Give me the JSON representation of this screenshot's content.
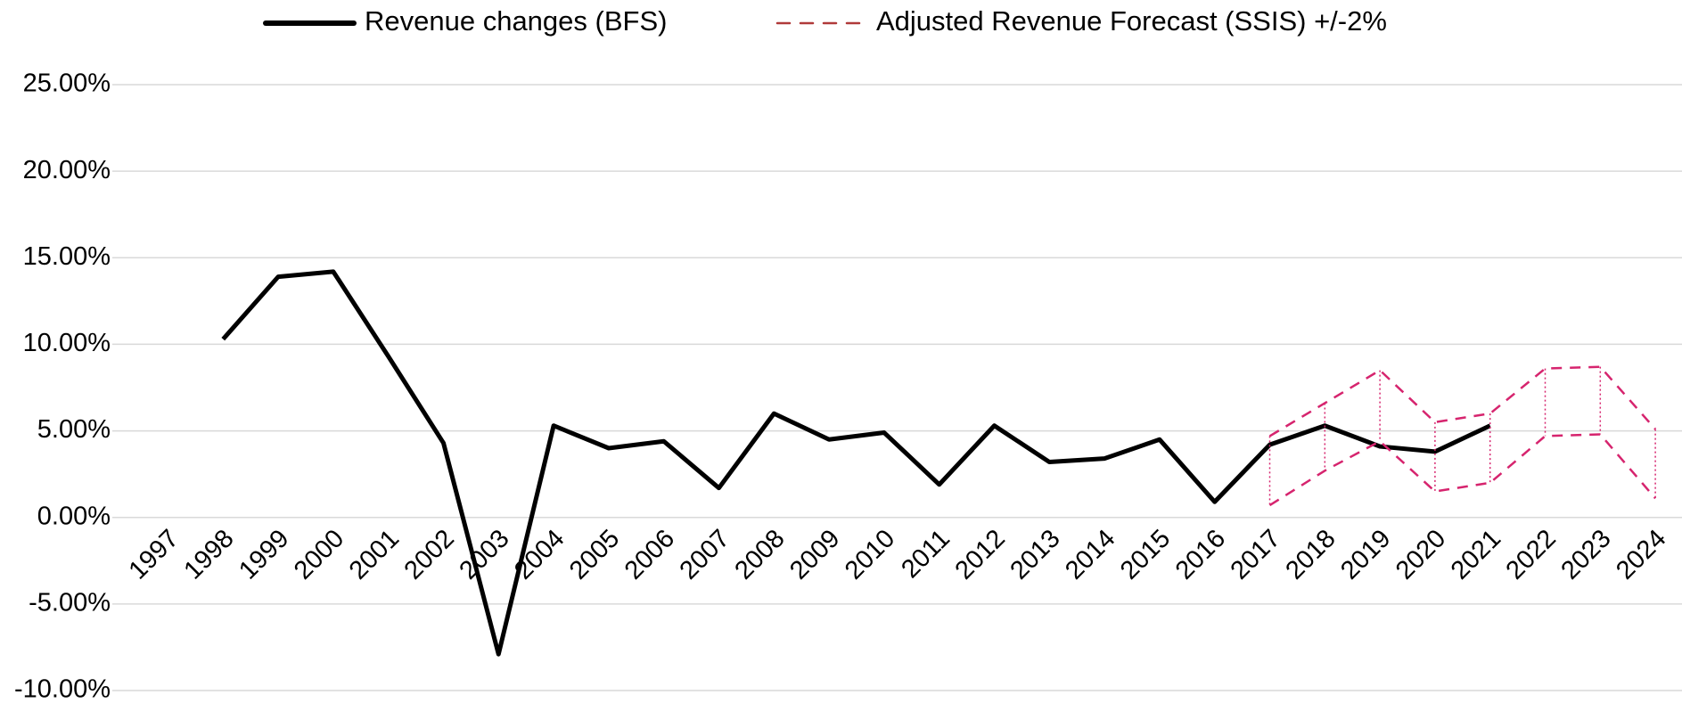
{
  "chart_data": {
    "type": "line",
    "categories": [
      "1997",
      "1998",
      "1999",
      "2000",
      "2001",
      "2002",
      "2003",
      "2004",
      "2005",
      "2006",
      "2007",
      "2008",
      "2009",
      "2010",
      "2011",
      "2012",
      "2013",
      "2014",
      "2015",
      "2016",
      "2017",
      "2018",
      "2019",
      "2020",
      "2021",
      "2022",
      "2023",
      "2024"
    ],
    "series": [
      {
        "name": "Revenue changes (BFS)",
        "color": "#000000",
        "style": "solid",
        "values": [
          null,
          10.3,
          13.9,
          14.2,
          9.3,
          4.3,
          -7.9,
          5.3,
          4.0,
          4.4,
          1.7,
          6.0,
          4.5,
          4.9,
          1.9,
          5.3,
          3.2,
          3.4,
          4.5,
          0.9,
          4.2,
          5.3,
          4.1,
          3.8,
          5.3,
          null,
          null,
          null
        ]
      },
      {
        "name": "Adjusted Revenue Forecast (SSIS) +/-2%",
        "color": "#d6246e",
        "style": "dashed",
        "values": [
          null,
          null,
          null,
          null,
          null,
          null,
          null,
          null,
          null,
          null,
          null,
          null,
          null,
          null,
          null,
          null,
          null,
          null,
          null,
          null,
          4.7,
          6.6,
          8.5,
          5.5,
          6.0,
          8.6,
          8.7,
          5.1
        ],
        "values_low": [
          null,
          null,
          null,
          null,
          null,
          null,
          null,
          null,
          null,
          null,
          null,
          null,
          null,
          null,
          null,
          null,
          null,
          null,
          null,
          null,
          0.7,
          2.7,
          4.4,
          1.5,
          2.0,
          4.7,
          4.8,
          1.1
        ]
      }
    ],
    "ylim": [
      -10,
      25
    ],
    "yticks": [
      {
        "value": -10,
        "label": "-10.00%"
      },
      {
        "value": -5,
        "label": "-5.00%"
      },
      {
        "value": 0,
        "label": "0.00%"
      },
      {
        "value": 5,
        "label": "5.00%"
      },
      {
        "value": 10,
        "label": "10.00%"
      },
      {
        "value": 15,
        "label": "15.00%"
      },
      {
        "value": 20,
        "label": "20.00%"
      },
      {
        "value": 25,
        "label": "25.00%"
      }
    ],
    "grid": true,
    "legend": "top"
  }
}
